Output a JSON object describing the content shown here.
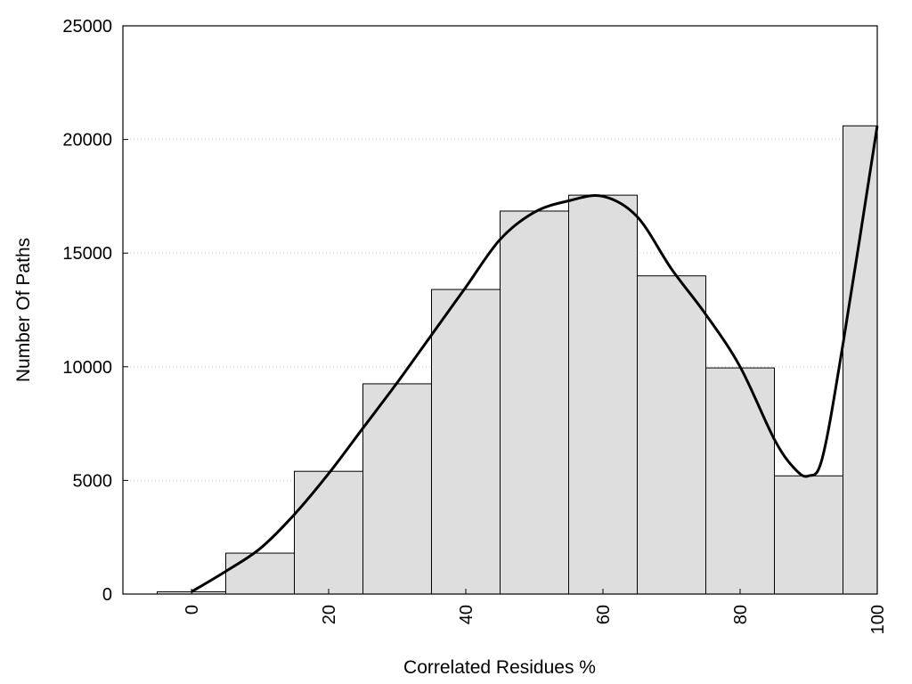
{
  "chart_data": {
    "type": "bar",
    "xlabel": "Correlated Residues %",
    "ylabel": "Number Of Paths",
    "xlim": [
      -10,
      100
    ],
    "ylim": [
      0,
      25000
    ],
    "x_ticks": [
      "0",
      "20",
      "40",
      "60",
      "80",
      "100"
    ],
    "y_ticks": [
      "0",
      "5000",
      "10000",
      "15000",
      "20000",
      "25000"
    ],
    "grid": true,
    "legend": "none",
    "bin_width": 10,
    "bars": [
      {
        "x": 0,
        "value": 100
      },
      {
        "x": 10,
        "value": 1800
      },
      {
        "x": 20,
        "value": 5400
      },
      {
        "x": 30,
        "value": 9250
      },
      {
        "x": 40,
        "value": 13400
      },
      {
        "x": 50,
        "value": 16850
      },
      {
        "x": 60,
        "value": 17550
      },
      {
        "x": 70,
        "value": 14000
      },
      {
        "x": 80,
        "value": 9950
      },
      {
        "x": 90,
        "value": 5200
      },
      {
        "x": 100,
        "value": 20600
      }
    ],
    "curve": {
      "x": [
        0,
        5,
        10,
        15,
        20,
        25,
        30,
        35,
        40,
        45,
        50,
        55,
        60,
        65,
        70,
        75,
        80,
        85,
        88,
        90,
        92,
        95,
        100
      ],
      "y": [
        100,
        1000,
        2000,
        3500,
        5300,
        7300,
        9300,
        11400,
        13500,
        15600,
        16800,
        17300,
        17500,
        16600,
        14300,
        12300,
        10000,
        6800,
        5500,
        5200,
        6000,
        11000,
        20600
      ]
    },
    "colors": {
      "bar_fill": "#dedede",
      "bar_stroke": "#000000",
      "curve": "#000000",
      "grid": "#cccccc"
    }
  }
}
